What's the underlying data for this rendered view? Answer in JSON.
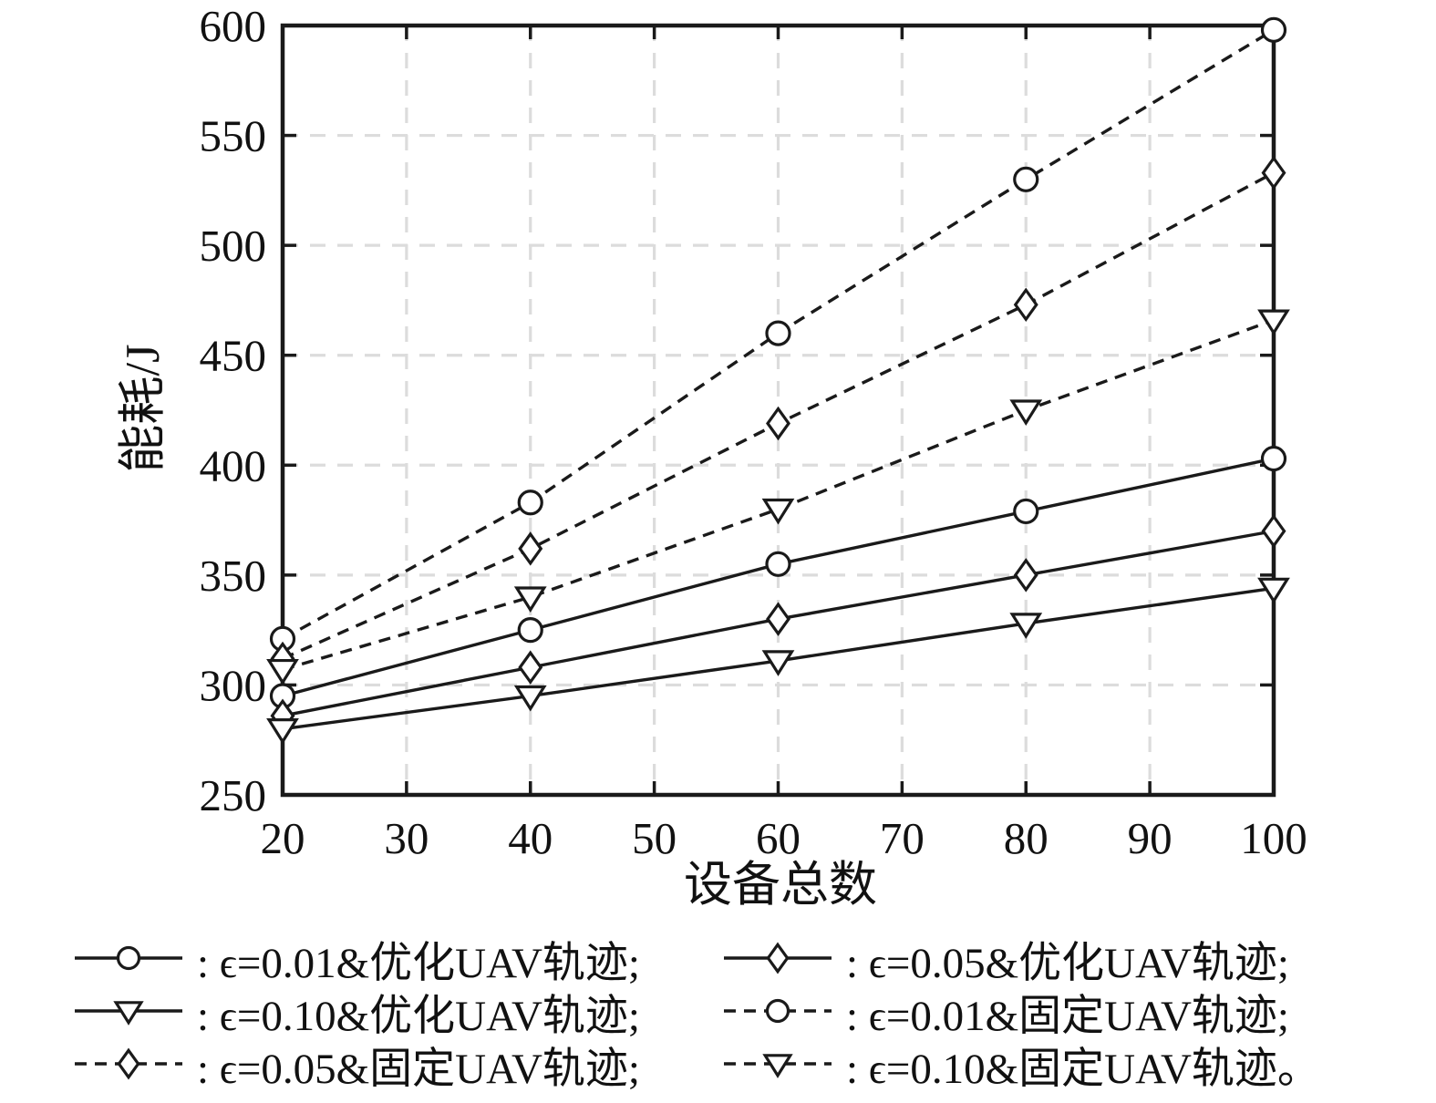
{
  "figure": {
    "background": "#ffffff",
    "ink_color": "#1a1a1a",
    "grid_color": "#dcdcdc"
  },
  "chart_data": {
    "type": "line",
    "title": "",
    "xlabel": "设备总数",
    "ylabel": "能耗/J",
    "xlim": [
      20,
      100
    ],
    "ylim": [
      250,
      600
    ],
    "xticks": [
      20,
      30,
      40,
      50,
      60,
      70,
      80,
      90,
      100
    ],
    "yticks": [
      250,
      300,
      350,
      400,
      450,
      500,
      550,
      600
    ],
    "xgrid": [
      30,
      40,
      50,
      60,
      70,
      80,
      90
    ],
    "ygrid": [
      300,
      350,
      400,
      450,
      500,
      550
    ],
    "grid_style": "dashed-light",
    "legend_position": "below",
    "x": [
      20,
      40,
      60,
      80,
      100
    ],
    "series": [
      {
        "name": "ϵ=0.01&优化UAV轨迹",
        "line": "solid",
        "marker": "circle",
        "values": [
          295,
          325,
          355,
          379,
          403
        ]
      },
      {
        "name": "ϵ=0.05&优化UAV轨迹",
        "line": "solid",
        "marker": "diamond",
        "values": [
          286,
          308,
          330,
          350,
          370
        ]
      },
      {
        "name": "ϵ=0.10&优化UAV轨迹",
        "line": "solid",
        "marker": "triangle-down",
        "values": [
          280,
          295,
          311,
          328,
          344
        ]
      },
      {
        "name": "ϵ=0.01&固定UAV轨迹",
        "line": "dashed",
        "marker": "circle",
        "values": [
          321,
          383,
          460,
          530,
          598
        ]
      },
      {
        "name": "ϵ=0.05&固定UAV轨迹",
        "line": "dashed",
        "marker": "diamond",
        "values": [
          312,
          362,
          419,
          473,
          533
        ]
      },
      {
        "name": "ϵ=0.10&固定UAV轨迹",
        "line": "dashed",
        "marker": "triangle-down",
        "values": [
          307,
          340,
          380,
          425,
          466
        ]
      }
    ]
  },
  "legend": {
    "items": [
      {
        "line": "solid",
        "marker": "circle",
        "label": ": ϵ=0.01&优化UAV轨迹;"
      },
      {
        "line": "solid",
        "marker": "diamond",
        "label": ": ϵ=0.05&优化UAV轨迹;"
      },
      {
        "line": "solid",
        "marker": "triangle-down",
        "label": ": ϵ=0.10&优化UAV轨迹;"
      },
      {
        "line": "dashed",
        "marker": "circle",
        "label": ": ϵ=0.01&固定UAV轨迹;"
      },
      {
        "line": "dashed",
        "marker": "diamond",
        "label": ": ϵ=0.05&固定UAV轨迹;"
      },
      {
        "line": "dashed",
        "marker": "triangle-down",
        "label": ": ϵ=0.10&固定UAV轨迹。"
      }
    ]
  }
}
